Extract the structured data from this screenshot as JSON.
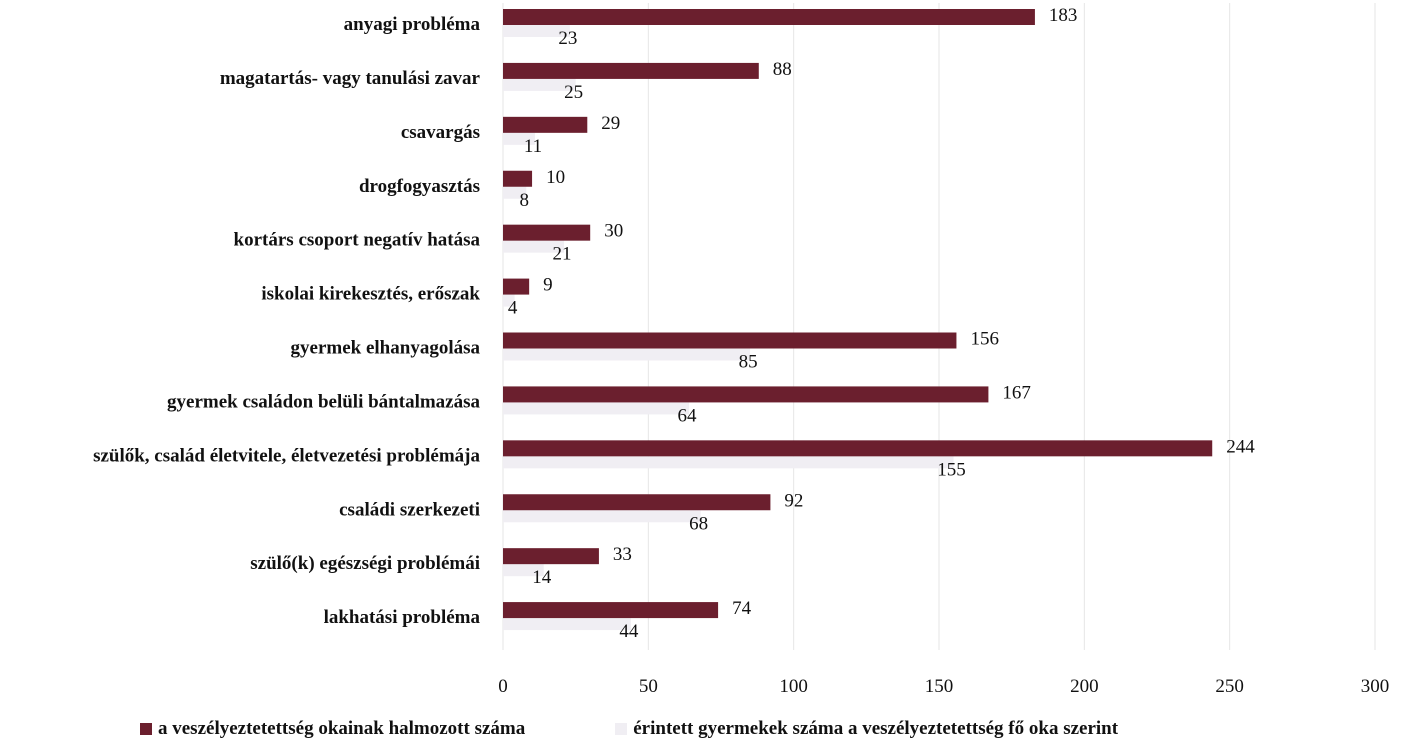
{
  "chart_data": {
    "type": "bar",
    "orientation": "horizontal",
    "categories": [
      "anyagi probléma",
      "magatartás- vagy tanulási zavar",
      "csavargás",
      "drogfogyasztás",
      "kortárs csoport negatív hatása",
      "iskolai kirekesztés, erőszak",
      "gyermek elhanyagolása",
      "gyermek családon belüli bántalmazása",
      "szülők, család életvitele, életvezetési problémája",
      "családi szerkezeti",
      "szülő(k) egészségi problémái",
      "lakhatási probléma"
    ],
    "series": [
      {
        "name": "a veszélyeztetettség okainak halmozott száma",
        "color": "#6b1f2e",
        "values": [
          183,
          88,
          29,
          10,
          30,
          9,
          156,
          167,
          244,
          92,
          33,
          74
        ]
      },
      {
        "name": "érintett gyermekek száma a veszélyeztetettség fő oka szerint",
        "color": "#f0eef3",
        "values": [
          23,
          25,
          11,
          8,
          21,
          4,
          85,
          64,
          155,
          68,
          14,
          44
        ]
      }
    ],
    "xlim": [
      0,
      300
    ],
    "x_ticks": [
      "0",
      "50",
      "100",
      "150",
      "200",
      "250",
      "300"
    ],
    "grid": true,
    "legend_position": "bottom"
  }
}
